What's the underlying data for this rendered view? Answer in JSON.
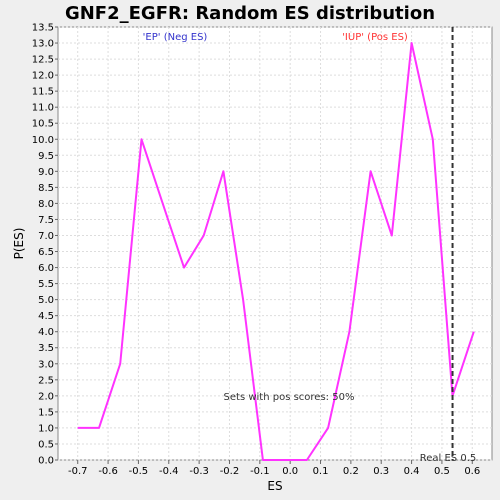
{
  "chart_data": {
    "type": "line",
    "title": "GNF2_EGFR: Random ES distribution",
    "xlabel": "ES",
    "ylabel": "P(ES)",
    "xlim": [
      -0.765,
      0.665
    ],
    "ylim": [
      0.0,
      13.5
    ],
    "x_ticks": [
      "-0.7",
      "-0.6",
      "-0.5",
      "-0.4",
      "-0.3",
      "-0.2",
      "-0.1",
      "0.0",
      "0.1",
      "0.2",
      "0.3",
      "0.4",
      "0.5",
      "0.6"
    ],
    "y_ticks": [
      "0.0",
      "0.5",
      "1.0",
      "1.5",
      "2.0",
      "2.5",
      "3.0",
      "3.5",
      "4.0",
      "4.5",
      "5.0",
      "5.5",
      "6.0",
      "6.5",
      "7.0",
      "7.5",
      "8.0",
      "8.5",
      "9.0",
      "9.5",
      "10.0",
      "10.5",
      "11.0",
      "11.5",
      "12.0",
      "12.5",
      "13.0",
      "13.5"
    ],
    "grid": true,
    "series": [
      {
        "color": "#ff33ff",
        "x": [
          -0.7,
          -0.63,
          -0.56,
          -0.49,
          -0.42,
          -0.35,
          -0.285,
          -0.22,
          -0.155,
          -0.09,
          -0.025,
          0.055,
          0.125,
          0.195,
          0.265,
          0.335,
          0.4,
          0.47,
          0.535,
          0.605
        ],
        "y": [
          1.0,
          1.0,
          3.0,
          10.0,
          8.0,
          6.0,
          7.0,
          9.0,
          5.0,
          0.0,
          0.0,
          0.0,
          1.0,
          4.0,
          9.0,
          7.0,
          13.0,
          10.0,
          2.0,
          4.0
        ]
      }
    ],
    "real_es": 0.535,
    "real_es_line_color": "#333333",
    "annotations": {
      "neg_label": "'EP' (Neg ES)",
      "neg_color": "#3333cc",
      "pos_label": "'IUP' (Pos ES)",
      "pos_color": "#ff3333",
      "pos_scores": "Sets with pos scores: 50%",
      "real_es_label": "Real ES 0.5"
    }
  }
}
